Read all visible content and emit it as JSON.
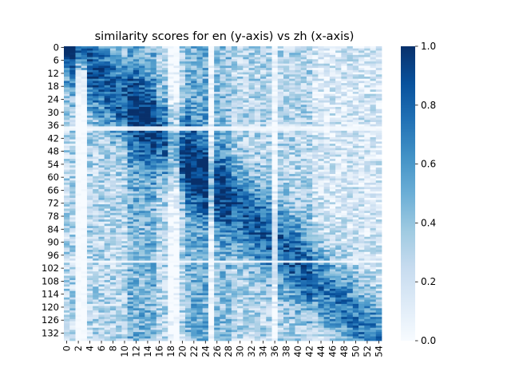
{
  "chart_data": {
    "type": "heatmap",
    "title": "similarity scores for en (y-axis) vs zh (x-axis)",
    "xlabel": "",
    "ylabel": "",
    "n_rows": 136,
    "n_cols": 55,
    "x_tick_labels": [
      "0",
      "2",
      "4",
      "6",
      "8",
      "10",
      "12",
      "14",
      "16",
      "18",
      "20",
      "22",
      "24",
      "26",
      "28",
      "30",
      "32",
      "34",
      "36",
      "38",
      "40",
      "42",
      "44",
      "46",
      "48",
      "50",
      "52",
      "54"
    ],
    "y_tick_labels": [
      "0",
      "6",
      "12",
      "18",
      "24",
      "30",
      "36",
      "42",
      "48",
      "54",
      "60",
      "66",
      "72",
      "78",
      "84",
      "90",
      "96",
      "102",
      "108",
      "114",
      "120",
      "126",
      "132"
    ],
    "colorbar": {
      "min": 0.0,
      "max": 1.0,
      "tick_labels": [
        "0.0",
        "0.2",
        "0.4",
        "0.6",
        "0.8",
        "1.0"
      ],
      "colormap": "Blues"
    },
    "colors": {
      "low": "#f7fbff",
      "high": "#08306b"
    }
  }
}
